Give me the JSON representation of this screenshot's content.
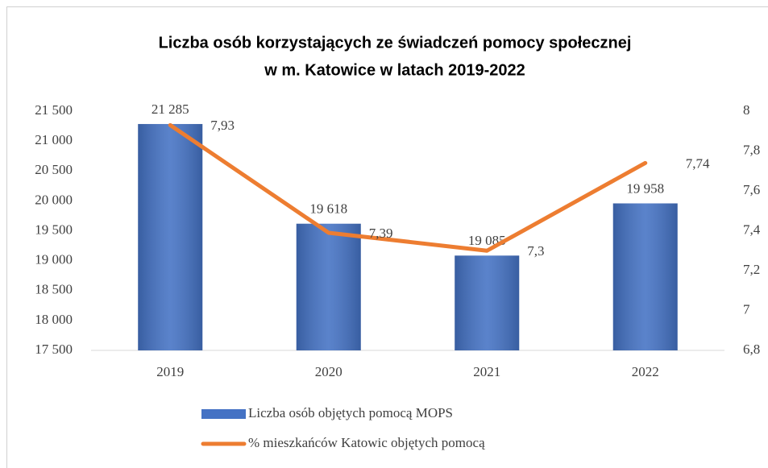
{
  "chart_data": {
    "type": "bar_line",
    "title": [
      "Liczba osób korzystających ze świadczeń pomocy społecznej",
      "w m. Katowice w latach 2019-2022"
    ],
    "categories": [
      "2019",
      "2020",
      "2021",
      "2022"
    ],
    "series": [
      {
        "name": "Liczba osób objętych pomocą MOPS",
        "type": "bar",
        "color": "#4472c4",
        "values": [
          21285,
          19618,
          19085,
          19958
        ],
        "value_labels": [
          "21 285",
          "19 618",
          "19 085",
          "19 958"
        ]
      },
      {
        "name": "% mieszkańców Katowic objętych pomocą",
        "type": "line",
        "axis": "y2",
        "color": "#ed7d31",
        "values": [
          7.93,
          7.39,
          7.3,
          7.74
        ],
        "value_labels": [
          "7,93",
          "7,39",
          "7,3",
          "7,74"
        ]
      }
    ],
    "ylim": [
      17500,
      21500
    ],
    "yticks": [
      {
        "value": 17500,
        "label": "17 500"
      },
      {
        "value": 18000,
        "label": "18 000"
      },
      {
        "value": 18500,
        "label": "18 500"
      },
      {
        "value": 19000,
        "label": "19 000"
      },
      {
        "value": 19500,
        "label": "19 500"
      },
      {
        "value": 20000,
        "label": "20 000"
      },
      {
        "value": 20500,
        "label": "20 500"
      },
      {
        "value": 21000,
        "label": "21 000"
      },
      {
        "value": 21500,
        "label": "21 500"
      }
    ],
    "y2lim": [
      6.8,
      8
    ],
    "y2ticks": [
      {
        "value": 6.8,
        "label": "6,8"
      },
      7,
      {
        "value": 7.2,
        "label": "7,2"
      },
      {
        "value": 7.4,
        "label": "7,4"
      },
      {
        "value": 7.6,
        "label": "7,6"
      },
      {
        "value": 7.8,
        "label": "7,8"
      },
      8
    ],
    "grid": false,
    "legend": "bottom"
  }
}
